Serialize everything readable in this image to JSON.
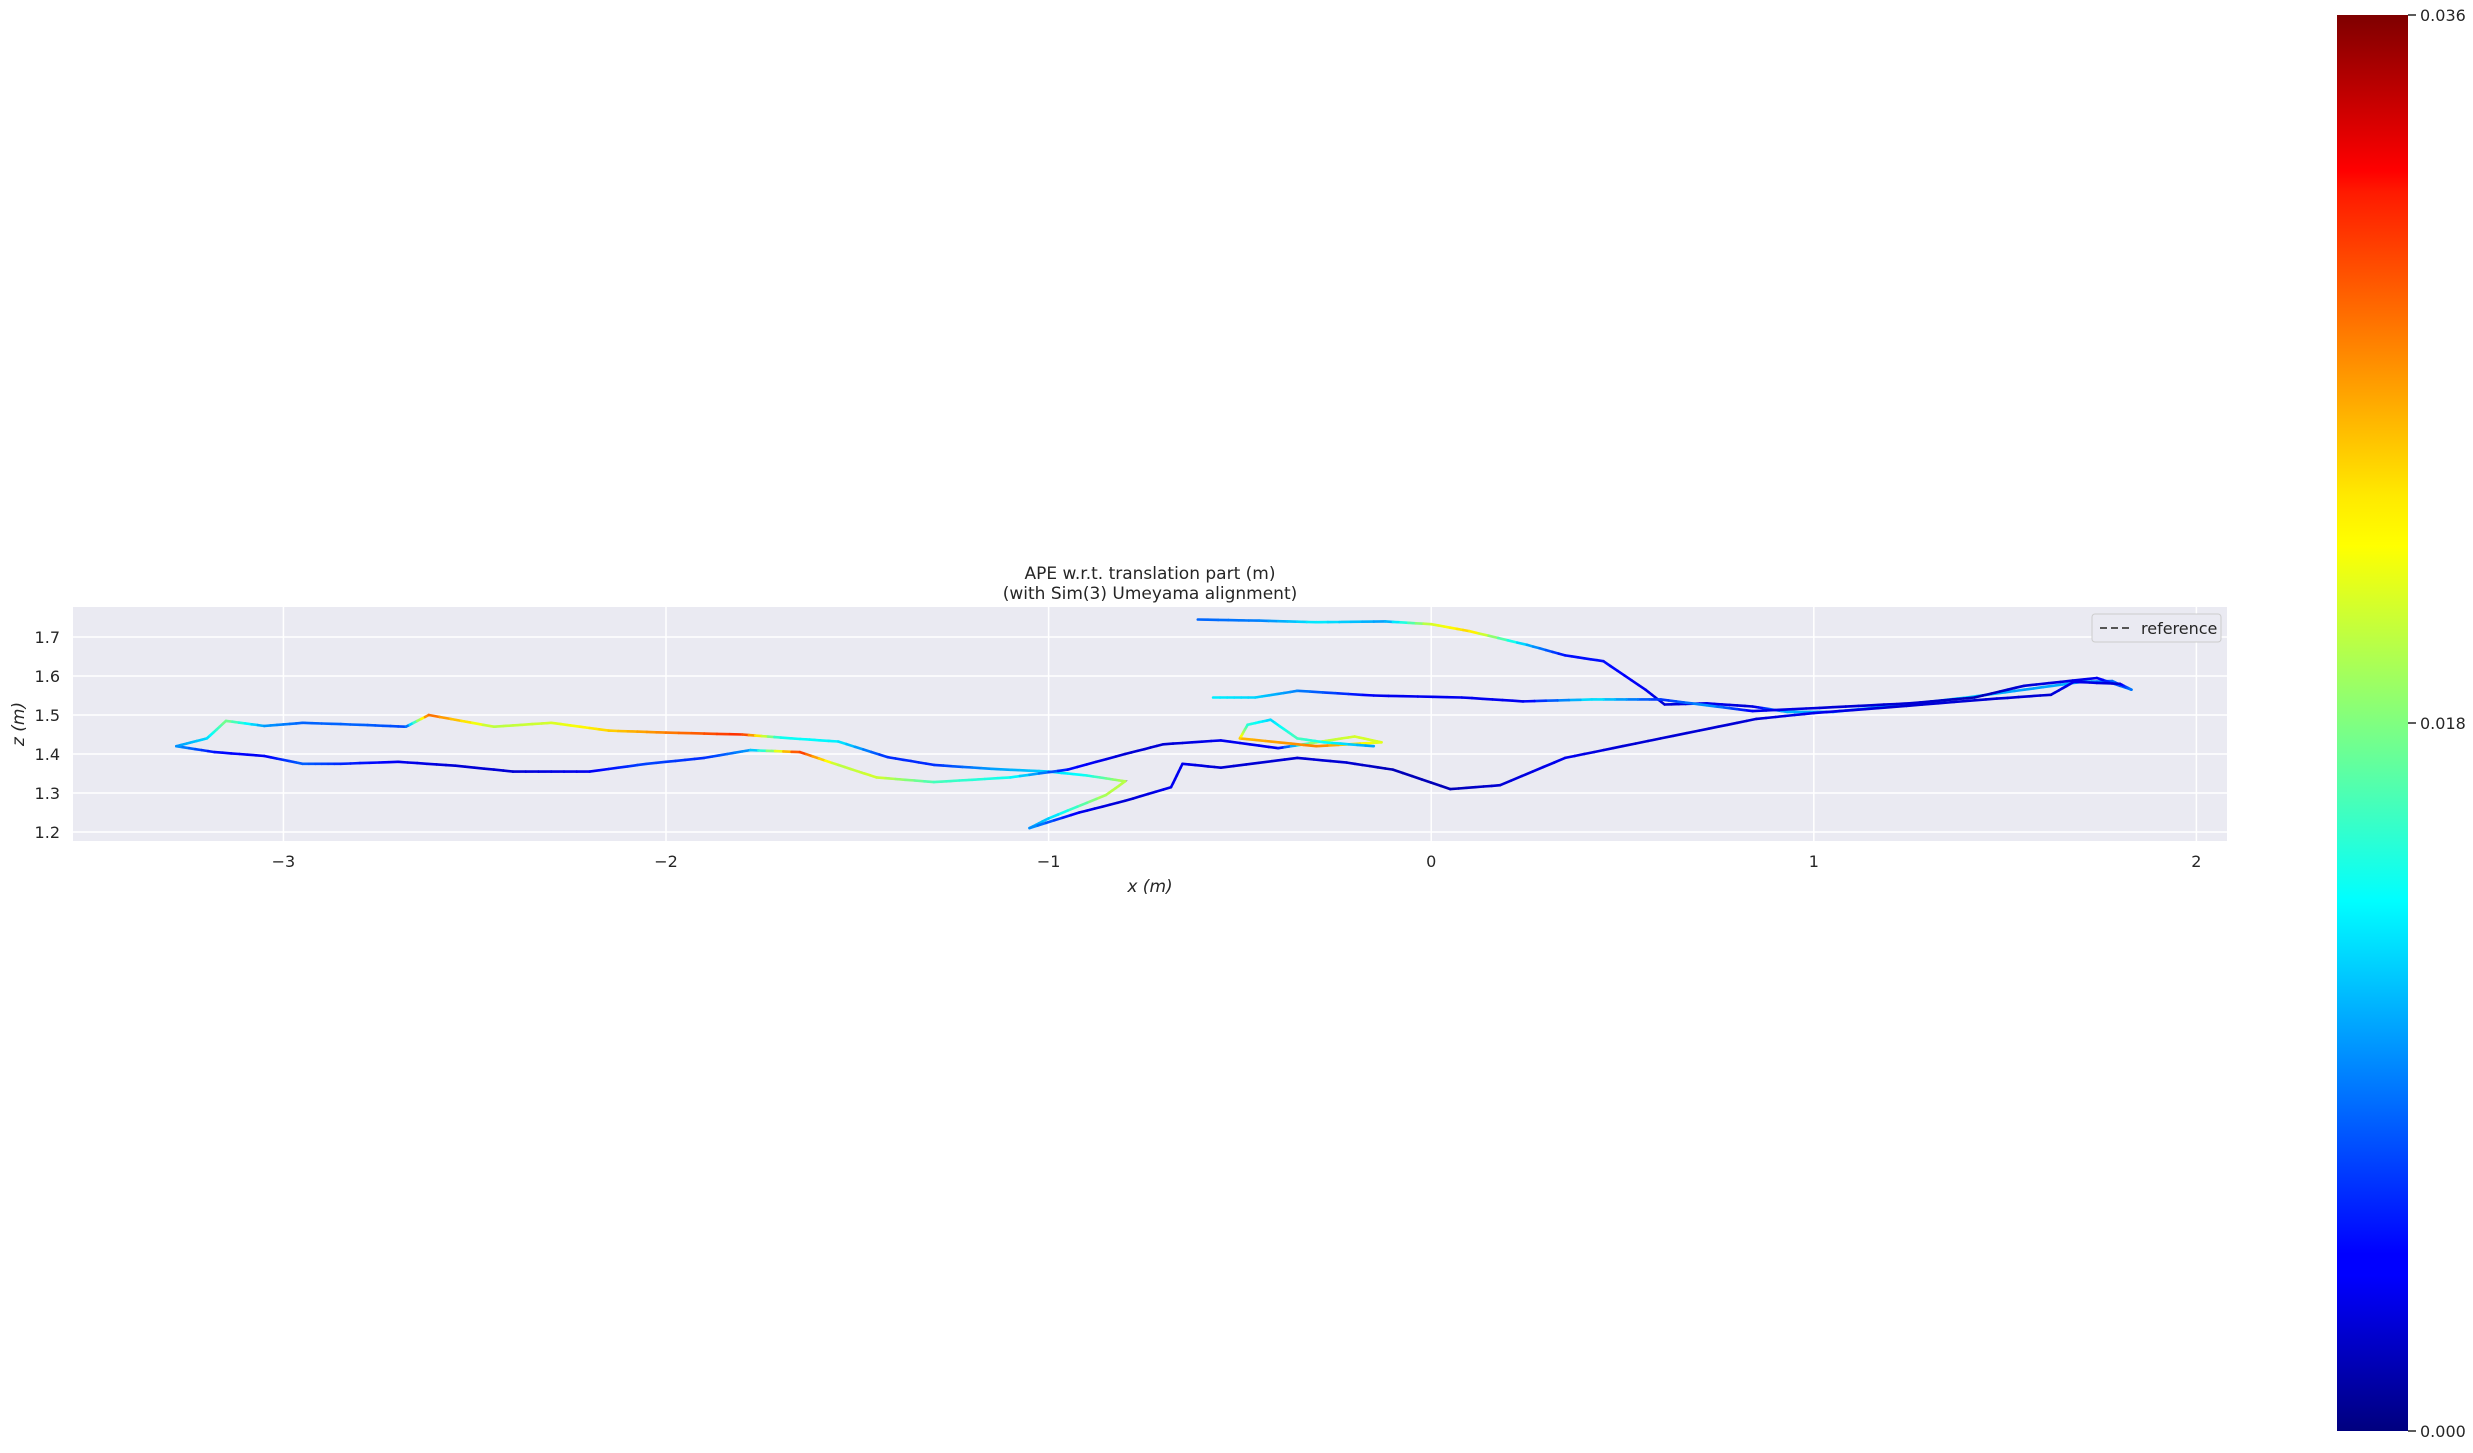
{
  "chart_data": {
    "type": "line",
    "title": "APE w.r.t. translation part (m)",
    "subtitle": "(with Sim(3) Umeyama alignment)",
    "xlabel": "x (m)",
    "ylabel": "z (m)",
    "xlim": [
      -3.55,
      2.08
    ],
    "ylim": [
      1.177,
      1.777
    ],
    "xticks": [
      -3,
      -2,
      -1,
      0,
      1,
      2
    ],
    "xtick_labels": [
      "−3",
      "−2",
      "−1",
      "0",
      "1",
      "2"
    ],
    "yticks": [
      1.2,
      1.3,
      1.4,
      1.5,
      1.6,
      1.7
    ],
    "ytick_labels": [
      "1.2",
      "1.3",
      "1.4",
      "1.5",
      "1.6",
      "1.7"
    ],
    "grid": true,
    "legend": {
      "position": "top-right",
      "entries": [
        "reference"
      ]
    },
    "colorbar": {
      "colormap": "jet",
      "min": 0.0,
      "max": 0.036,
      "tick_values": [
        0.0,
        0.018,
        0.036
      ],
      "tick_labels": [
        "0.000",
        "0.018",
        "0.036"
      ]
    },
    "series": [
      {
        "name": "reference",
        "style": "dashed",
        "color": "#555555",
        "points": [
          [
            -0.61,
            1.745
          ],
          [
            -0.45,
            1.742
          ],
          [
            -0.3,
            1.738
          ],
          [
            -0.12,
            1.74
          ],
          [
            0.0,
            1.733
          ],
          [
            0.1,
            1.715
          ],
          [
            0.25,
            1.68
          ],
          [
            0.35,
            1.653
          ],
          [
            0.45,
            1.638
          ],
          [
            0.56,
            1.565
          ],
          [
            0.61,
            1.527
          ],
          [
            0.72,
            1.53
          ],
          [
            0.84,
            1.522
          ],
          [
            0.93,
            1.508
          ],
          [
            1.05,
            1.508
          ],
          [
            1.25,
            1.528
          ],
          [
            1.4,
            1.545
          ],
          [
            1.55,
            1.565
          ],
          [
            1.7,
            1.585
          ],
          [
            1.78,
            1.587
          ],
          [
            1.83,
            1.565
          ],
          [
            1.74,
            1.595
          ],
          [
            1.55,
            1.575
          ],
          [
            1.42,
            1.545
          ],
          [
            1.25,
            1.53
          ],
          [
            1.05,
            1.52
          ],
          [
            0.84,
            1.51
          ],
          [
            0.72,
            1.525
          ],
          [
            0.6,
            1.54
          ],
          [
            0.42,
            1.54
          ],
          [
            0.24,
            1.535
          ],
          [
            0.08,
            1.545
          ],
          [
            -0.15,
            1.55
          ],
          [
            -0.35,
            1.562
          ],
          [
            -0.46,
            1.545
          ],
          [
            -0.57,
            1.545
          ]
        ]
      },
      {
        "name": "",
        "style": "colored",
        "points": [
          [
            -0.61,
            1.745,
            0.008
          ],
          [
            -0.45,
            1.742,
            0.009
          ],
          [
            -0.3,
            1.738,
            0.013
          ],
          [
            -0.12,
            1.74,
            0.01
          ],
          [
            0.0,
            1.733,
            0.021
          ],
          [
            0.1,
            1.715,
            0.024
          ],
          [
            0.25,
            1.68,
            0.011
          ],
          [
            0.35,
            1.653,
            0.005
          ],
          [
            0.45,
            1.638,
            0.005
          ],
          [
            0.56,
            1.565,
            0.004
          ],
          [
            0.61,
            1.527,
            0.003
          ],
          [
            0.72,
            1.53,
            0.004
          ],
          [
            0.84,
            1.522,
            0.003
          ],
          [
            0.93,
            1.508,
            0.011
          ],
          [
            1.05,
            1.508,
            0.01
          ],
          [
            1.25,
            1.528,
            0.011
          ],
          [
            1.4,
            1.545,
            0.012
          ],
          [
            1.55,
            1.565,
            0.01
          ],
          [
            1.7,
            1.585,
            0.011
          ],
          [
            1.78,
            1.587,
            0.008
          ],
          [
            1.83,
            1.565,
            0.01
          ],
          [
            1.74,
            1.595,
            0.004
          ],
          [
            1.55,
            1.575,
            0.003
          ],
          [
            1.42,
            1.545,
            0.002
          ],
          [
            1.25,
            1.53,
            0.003
          ],
          [
            1.05,
            1.52,
            0.003
          ],
          [
            0.84,
            1.51,
            0.004
          ],
          [
            0.72,
            1.525,
            0.01
          ],
          [
            0.6,
            1.54,
            0.006
          ],
          [
            0.42,
            1.54,
            0.013
          ],
          [
            0.24,
            1.535,
            0.004
          ],
          [
            0.08,
            1.545,
            0.004
          ],
          [
            -0.15,
            1.55,
            0.004
          ],
          [
            -0.35,
            1.562,
            0.009
          ],
          [
            -0.46,
            1.545,
            0.012
          ],
          [
            -0.57,
            1.545,
            0.013
          ]
        ]
      },
      {
        "name": "reference",
        "style": "dashed",
        "color": "#555555",
        "points": [
          [
            -3.28,
            1.42
          ],
          [
            -3.2,
            1.44
          ],
          [
            -3.15,
            1.485
          ],
          [
            -3.05,
            1.472
          ],
          [
            -2.95,
            1.48
          ],
          [
            -2.8,
            1.475
          ],
          [
            -2.68,
            1.47
          ],
          [
            -2.62,
            1.5
          ],
          [
            -2.45,
            1.47
          ],
          [
            -2.3,
            1.48
          ],
          [
            -2.15,
            1.46
          ],
          [
            -2.0,
            1.455
          ],
          [
            -1.8,
            1.45
          ],
          [
            -1.7,
            1.442
          ],
          [
            -1.55,
            1.432
          ],
          [
            -1.42,
            1.392
          ],
          [
            -1.3,
            1.372
          ],
          [
            -1.15,
            1.362
          ],
          [
            -1.0,
            1.355
          ],
          [
            -0.9,
            1.345
          ],
          [
            -0.8,
            1.33
          ],
          [
            -0.85,
            1.295
          ],
          [
            -1.0,
            1.235
          ],
          [
            -1.05,
            1.21
          ],
          [
            -0.92,
            1.25
          ],
          [
            -0.8,
            1.28
          ],
          [
            -0.68,
            1.315
          ],
          [
            -0.65,
            1.375
          ],
          [
            -0.55,
            1.365
          ],
          [
            -0.35,
            1.39
          ],
          [
            -0.22,
            1.378
          ],
          [
            -0.1,
            1.36
          ],
          [
            0.05,
            1.31
          ],
          [
            0.18,
            1.32
          ],
          [
            0.35,
            1.39
          ],
          [
            0.5,
            1.42
          ],
          [
            0.7,
            1.46
          ],
          [
            0.85,
            1.49
          ],
          [
            1.0,
            1.505
          ],
          [
            1.2,
            1.52
          ],
          [
            1.45,
            1.54
          ],
          [
            1.62,
            1.552
          ],
          [
            1.68,
            1.585
          ],
          [
            1.8,
            1.58
          ],
          [
            1.83,
            1.565
          ]
        ]
      },
      {
        "name": "",
        "style": "colored",
        "points": [
          [
            -3.28,
            1.42,
            0.01
          ],
          [
            -3.2,
            1.44,
            0.012
          ],
          [
            -3.15,
            1.485,
            0.018
          ],
          [
            -3.05,
            1.472,
            0.01
          ],
          [
            -2.95,
            1.48,
            0.008
          ],
          [
            -2.8,
            1.475,
            0.008
          ],
          [
            -2.68,
            1.47,
            0.007
          ],
          [
            -2.62,
            1.5,
            0.028
          ],
          [
            -2.45,
            1.47,
            0.02
          ],
          [
            -2.3,
            1.48,
            0.021
          ],
          [
            -2.15,
            1.46,
            0.024
          ],
          [
            -2.0,
            1.455,
            0.027
          ],
          [
            -1.8,
            1.45,
            0.03
          ],
          [
            -1.7,
            1.442,
            0.014
          ],
          [
            -1.55,
            1.432,
            0.013
          ],
          [
            -1.42,
            1.392,
            0.006
          ],
          [
            -1.3,
            1.372,
            0.006
          ],
          [
            -1.15,
            1.362,
            0.01
          ],
          [
            -1.0,
            1.355,
            0.012
          ],
          [
            -0.9,
            1.345,
            0.014
          ],
          [
            -0.8,
            1.33,
            0.02
          ],
          [
            -0.85,
            1.295,
            0.02
          ],
          [
            -1.0,
            1.235,
            0.012
          ],
          [
            -1.05,
            1.21,
            0.01
          ],
          [
            -0.92,
            1.25,
            0.004
          ],
          [
            -0.8,
            1.28,
            0.003
          ],
          [
            -0.68,
            1.315,
            0.004
          ],
          [
            -0.65,
            1.375,
            0.004
          ],
          [
            -0.55,
            1.365,
            0.003
          ],
          [
            -0.35,
            1.39,
            0.003
          ],
          [
            -0.22,
            1.378,
            0.003
          ],
          [
            -0.1,
            1.36,
            0.002
          ],
          [
            0.05,
            1.31,
            0.002
          ],
          [
            0.18,
            1.32,
            0.003
          ],
          [
            0.35,
            1.39,
            0.004
          ],
          [
            0.5,
            1.42,
            0.003
          ],
          [
            0.7,
            1.46,
            0.003
          ],
          [
            0.85,
            1.49,
            0.003
          ],
          [
            1.0,
            1.505,
            0.004
          ],
          [
            1.2,
            1.52,
            0.003
          ],
          [
            1.45,
            1.54,
            0.003
          ],
          [
            1.62,
            1.552,
            0.003
          ],
          [
            1.68,
            1.585,
            0.004
          ],
          [
            1.8,
            1.58,
            0.003
          ],
          [
            1.83,
            1.565,
            0.009
          ]
        ]
      },
      {
        "name": "reference",
        "style": "dashed",
        "color": "#555555",
        "points": [
          [
            -3.28,
            1.42
          ],
          [
            -3.18,
            1.405
          ],
          [
            -3.05,
            1.395
          ],
          [
            -2.95,
            1.375
          ],
          [
            -2.85,
            1.375
          ],
          [
            -2.7,
            1.38
          ],
          [
            -2.55,
            1.37
          ],
          [
            -2.4,
            1.355
          ],
          [
            -2.2,
            1.355
          ],
          [
            -2.05,
            1.375
          ],
          [
            -1.9,
            1.39
          ],
          [
            -1.78,
            1.41
          ],
          [
            -1.65,
            1.405
          ],
          [
            -1.55,
            1.372
          ],
          [
            -1.45,
            1.34
          ],
          [
            -1.3,
            1.328
          ],
          [
            -1.1,
            1.34
          ],
          [
            -0.95,
            1.36
          ],
          [
            -0.8,
            1.4
          ],
          [
            -0.7,
            1.425
          ],
          [
            -0.55,
            1.435
          ],
          [
            -0.4,
            1.415
          ],
          [
            -0.3,
            1.43
          ],
          [
            -0.2,
            1.445
          ],
          [
            -0.13,
            1.43
          ],
          [
            -0.3,
            1.42
          ],
          [
            -0.5,
            1.44
          ],
          [
            -0.48,
            1.475
          ],
          [
            -0.42,
            1.488
          ],
          [
            -0.35,
            1.44
          ],
          [
            -0.28,
            1.43
          ],
          [
            -0.15,
            1.42
          ]
        ]
      },
      {
        "name": "",
        "style": "colored",
        "points": [
          [
            -3.28,
            1.42,
            0.01
          ],
          [
            -3.18,
            1.405,
            0.005
          ],
          [
            -3.05,
            1.395,
            0.004
          ],
          [
            -2.95,
            1.375,
            0.008
          ],
          [
            -2.85,
            1.375,
            0.006
          ],
          [
            -2.7,
            1.38,
            0.004
          ],
          [
            -2.55,
            1.37,
            0.003
          ],
          [
            -2.4,
            1.355,
            0.003
          ],
          [
            -2.2,
            1.355,
            0.004
          ],
          [
            -2.05,
            1.375,
            0.007
          ],
          [
            -1.9,
            1.39,
            0.006
          ],
          [
            -1.78,
            1.41,
            0.01
          ],
          [
            -1.65,
            1.405,
            0.03
          ],
          [
            -1.55,
            1.372,
            0.02
          ],
          [
            -1.45,
            1.34,
            0.021
          ],
          [
            -1.3,
            1.328,
            0.016
          ],
          [
            -1.1,
            1.34,
            0.014
          ],
          [
            -0.95,
            1.36,
            0.005
          ],
          [
            -0.8,
            1.4,
            0.003
          ],
          [
            -0.7,
            1.425,
            0.003
          ],
          [
            -0.55,
            1.435,
            0.004
          ],
          [
            -0.4,
            1.415,
            0.004
          ],
          [
            -0.3,
            1.43,
            0.02
          ],
          [
            -0.2,
            1.445,
            0.021
          ],
          [
            -0.13,
            1.43,
            0.021
          ],
          [
            -0.3,
            1.42,
            0.027
          ],
          [
            -0.5,
            1.44,
            0.025
          ],
          [
            -0.48,
            1.475,
            0.015
          ],
          [
            -0.42,
            1.488,
            0.012
          ],
          [
            -0.35,
            1.44,
            0.016
          ],
          [
            -0.28,
            1.43,
            0.014
          ],
          [
            -0.15,
            1.42,
            0.01
          ]
        ]
      }
    ]
  }
}
